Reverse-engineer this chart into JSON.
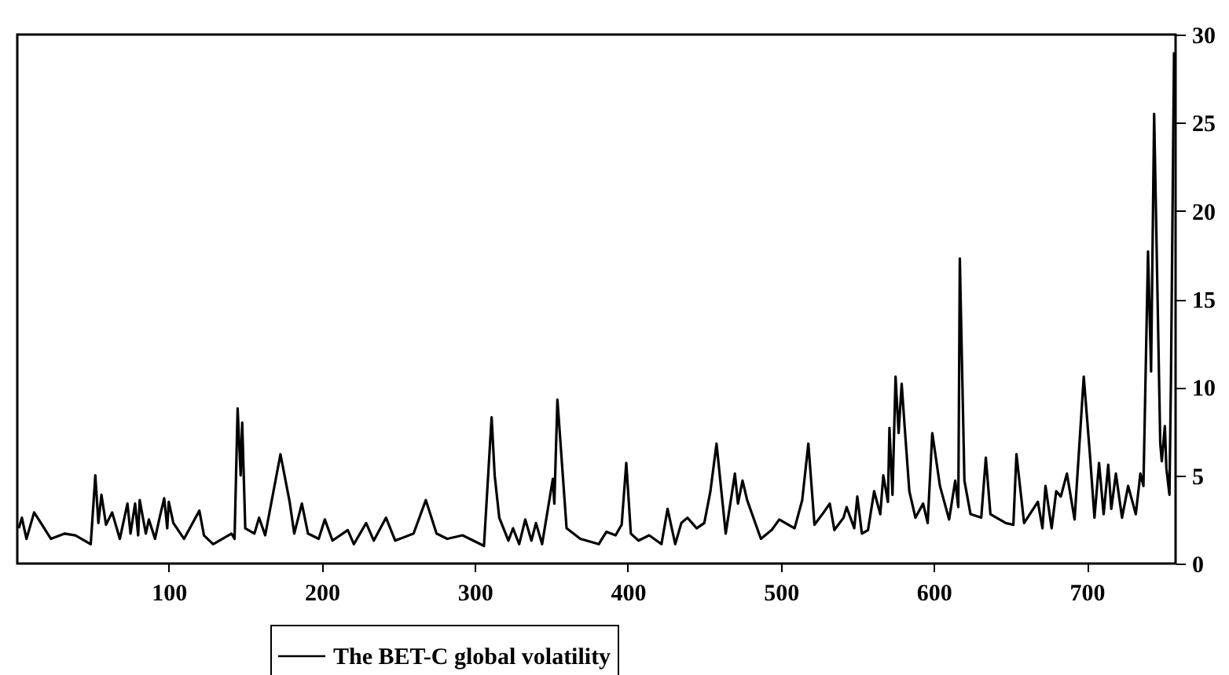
{
  "chart_data": {
    "type": "line",
    "x": [
      2,
      4,
      7,
      12,
      15,
      23,
      32,
      39,
      49,
      52,
      54,
      56,
      59,
      63,
      68,
      73,
      75,
      78,
      80,
      81,
      85,
      87,
      91,
      94,
      97,
      99,
      100,
      103,
      110,
      120,
      123,
      129,
      141,
      143,
      145,
      147,
      148,
      150,
      156,
      159,
      163,
      173,
      179,
      182,
      187,
      191,
      198,
      202,
      207,
      217,
      221,
      229,
      234,
      242,
      248,
      260,
      268,
      275,
      282,
      292,
      306,
      311,
      313,
      316,
      322,
      325,
      329,
      333,
      337,
      340,
      344,
      351,
      352,
      354,
      360,
      369,
      381,
      386,
      392,
      396,
      399,
      402,
      407,
      414,
      422,
      426,
      431,
      435,
      439,
      445,
      450,
      454,
      458,
      464,
      470,
      472,
      475,
      478,
      487,
      494,
      499,
      509,
      514,
      518,
      522,
      528,
      532,
      535,
      541,
      543,
      548,
      550,
      553,
      557,
      561,
      565,
      567,
      570,
      571,
      573,
      575,
      577,
      579,
      581,
      584,
      588,
      593,
      596,
      599,
      604,
      610,
      614,
      616,
      617,
      620,
      624,
      631,
      634,
      637,
      647,
      652,
      654,
      659,
      668,
      671,
      673,
      677,
      680,
      683,
      687,
      692,
      698,
      702,
      705,
      708,
      711,
      714,
      716,
      719,
      723,
      727,
      732,
      735,
      737,
      740,
      742,
      744,
      748,
      749,
      751,
      752,
      754,
      755,
      757
    ],
    "series": [
      {
        "name": "The BET-C global volatility",
        "color": "#000000",
        "values": [
          2.0,
          2.6,
          1.4,
          2.9,
          2.5,
          1.4,
          1.7,
          1.6,
          1.1,
          5.0,
          2.3,
          3.9,
          2.2,
          2.9,
          1.4,
          3.4,
          1.7,
          3.4,
          1.6,
          3.6,
          1.7,
          2.5,
          1.4,
          2.6,
          3.7,
          2.0,
          3.5,
          2.3,
          1.4,
          3.0,
          1.6,
          1.1,
          1.7,
          1.4,
          8.8,
          5.0,
          8.0,
          2.0,
          1.7,
          2.6,
          1.6,
          6.2,
          3.5,
          1.7,
          3.4,
          1.7,
          1.4,
          2.5,
          1.3,
          1.9,
          1.1,
          2.3,
          1.3,
          2.6,
          1.3,
          1.7,
          3.6,
          1.7,
          1.4,
          1.6,
          1.0,
          8.3,
          5.0,
          2.6,
          1.3,
          2.0,
          1.1,
          2.5,
          1.3,
          2.3,
          1.1,
          4.8,
          3.4,
          9.3,
          2.0,
          1.4,
          1.1,
          1.8,
          1.6,
          2.2,
          5.7,
          1.7,
          1.3,
          1.6,
          1.1,
          3.1,
          1.1,
          2.3,
          2.6,
          2.0,
          2.3,
          4.1,
          6.8,
          1.7,
          5.1,
          3.4,
          4.7,
          3.6,
          1.4,
          1.9,
          2.5,
          2.0,
          3.6,
          6.8,
          2.2,
          2.9,
          3.4,
          1.9,
          2.6,
          3.2,
          2.0,
          3.8,
          1.7,
          1.9,
          4.1,
          2.8,
          5.0,
          3.5,
          7.7,
          3.9,
          10.6,
          7.4,
          10.2,
          7.7,
          4.1,
          2.6,
          3.4,
          2.3,
          7.4,
          4.4,
          2.5,
          4.7,
          3.2,
          17.3,
          4.7,
          2.8,
          2.6,
          6.0,
          2.8,
          2.3,
          2.2,
          6.2,
          2.3,
          3.5,
          2.0,
          4.4,
          2.0,
          4.1,
          3.8,
          5.1,
          2.5,
          10.6,
          6.2,
          2.6,
          5.7,
          2.8,
          5.6,
          3.1,
          5.1,
          2.6,
          4.4,
          2.8,
          5.1,
          4.4,
          17.7,
          10.9,
          25.5,
          6.8,
          5.8,
          7.8,
          5.4,
          3.9,
          10.5,
          29.0
        ]
      }
    ],
    "xlim": [
      1,
      758
    ],
    "xticks": [
      100,
      200,
      300,
      400,
      500,
      600,
      700
    ],
    "ylim": [
      0,
      30
    ],
    "yticks": [
      0,
      5,
      10,
      15,
      20,
      25,
      30
    ],
    "grid": false,
    "legend": "bottom",
    "marker": "none",
    "line_style": "solid"
  }
}
